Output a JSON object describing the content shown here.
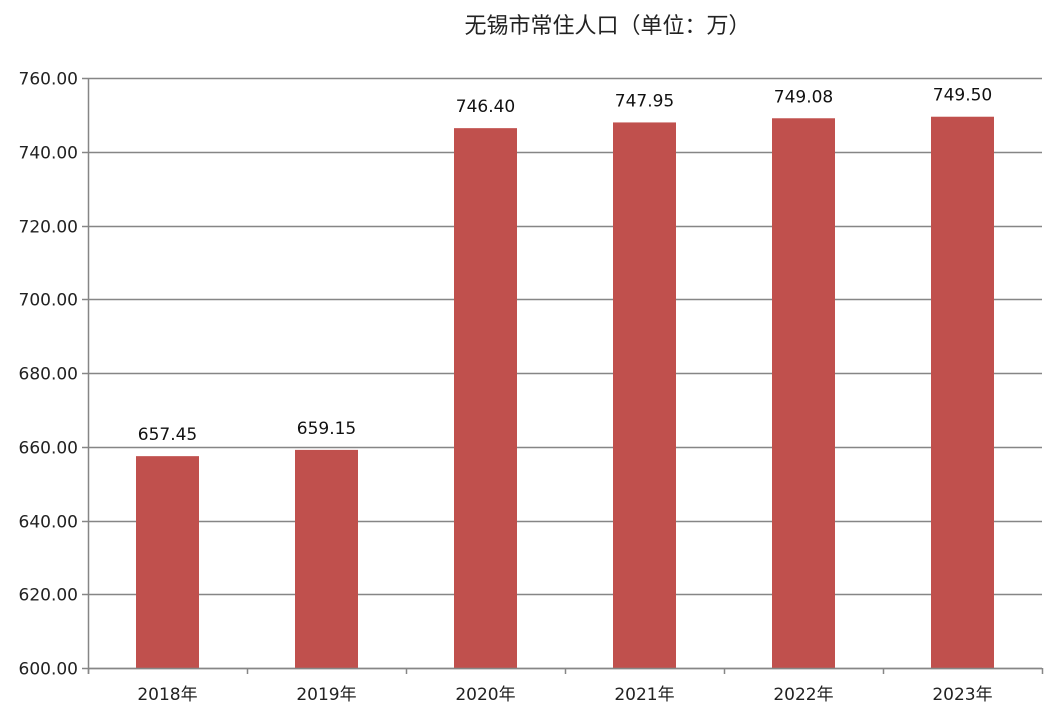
{
  "chart_data": {
    "type": "bar",
    "title": "无锡市常住人口（单位：万）",
    "categories": [
      "2018年",
      "2019年",
      "2020年",
      "2021年",
      "2022年",
      "2023年"
    ],
    "values": [
      657.45,
      659.15,
      746.4,
      747.95,
      749.08,
      749.5
    ],
    "data_labels": [
      "657.45",
      "659.15",
      "746.40",
      "747.95",
      "749.08",
      "749.50"
    ],
    "y_ticks": [
      "600.00",
      "620.00",
      "640.00",
      "660.00",
      "680.00",
      "700.00",
      "720.00",
      "740.00",
      "760.00"
    ],
    "ylim": [
      600,
      760
    ],
    "grid": true,
    "legend": "none",
    "bar_color": "#c0504d",
    "grid_color": "#868686",
    "axis_color": "#868686"
  }
}
